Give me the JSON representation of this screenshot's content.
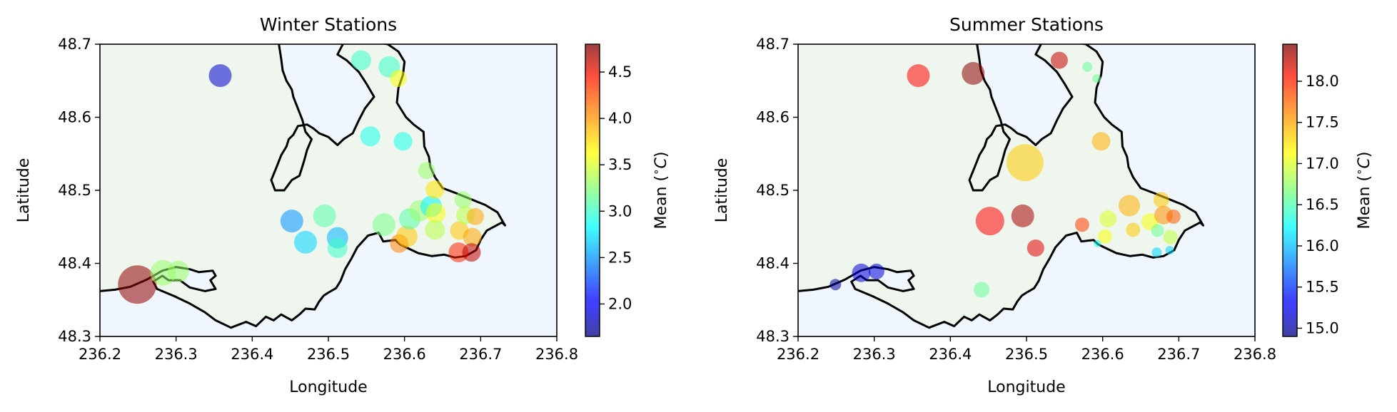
{
  "chart_data": [
    {
      "type": "scatter",
      "title": "Winter Stations",
      "xlabel": "Longitude",
      "ylabel": "Latitude",
      "xlim": [
        236.2,
        236.8
      ],
      "ylim": [
        48.3,
        48.7
      ],
      "xticks": [
        "236.2",
        "236.3",
        "236.4",
        "236.5",
        "236.6",
        "236.7",
        "236.8"
      ],
      "yticks": [
        "48.3",
        "48.4",
        "48.5",
        "48.6",
        "48.7"
      ],
      "colorbar": {
        "label": "Mean ($^\\circ$C)",
        "min": 1.65,
        "max": 4.8,
        "ticks": [
          "2.0",
          "2.5",
          "3.0",
          "3.5",
          "4.0",
          "4.5"
        ],
        "tick_values": [
          2.0,
          2.5,
          3.0,
          3.5,
          4.0,
          4.5
        ]
      },
      "points": [
        {
          "x": 236.358,
          "y": 48.657,
          "value": 1.9,
          "size": 1.6
        },
        {
          "x": 236.249,
          "y": 48.371,
          "value": 4.75,
          "size": 2.7
        },
        {
          "x": 236.283,
          "y": 48.387,
          "value": 3.3,
          "size": 1.8
        },
        {
          "x": 236.303,
          "y": 48.389,
          "value": 3.3,
          "size": 1.5
        },
        {
          "x": 236.452,
          "y": 48.458,
          "value": 2.5,
          "size": 1.6
        },
        {
          "x": 236.47,
          "y": 48.429,
          "value": 2.7,
          "size": 1.6
        },
        {
          "x": 236.495,
          "y": 48.465,
          "value": 3.1,
          "size": 1.6
        },
        {
          "x": 236.512,
          "y": 48.435,
          "value": 2.6,
          "size": 1.5
        },
        {
          "x": 236.512,
          "y": 48.421,
          "value": 3.0,
          "size": 1.4
        },
        {
          "x": 236.543,
          "y": 48.678,
          "value": 3.0,
          "size": 1.4
        },
        {
          "x": 236.555,
          "y": 48.574,
          "value": 2.9,
          "size": 1.4
        },
        {
          "x": 236.58,
          "y": 48.669,
          "value": 3.0,
          "size": 1.5
        },
        {
          "x": 236.592,
          "y": 48.653,
          "value": 3.6,
          "size": 1.2
        },
        {
          "x": 236.598,
          "y": 48.567,
          "value": 2.9,
          "size": 1.3
        },
        {
          "x": 236.573,
          "y": 48.453,
          "value": 3.2,
          "size": 1.6
        },
        {
          "x": 236.593,
          "y": 48.427,
          "value": 4.0,
          "size": 1.3
        },
        {
          "x": 236.603,
          "y": 48.437,
          "value": 3.8,
          "size": 1.5
        },
        {
          "x": 236.607,
          "y": 48.461,
          "value": 3.1,
          "size": 1.5
        },
        {
          "x": 236.62,
          "y": 48.472,
          "value": 3.3,
          "size": 1.5
        },
        {
          "x": 236.629,
          "y": 48.527,
          "value": 3.3,
          "size": 1.2
        },
        {
          "x": 236.635,
          "y": 48.478,
          "value": 2.8,
          "size": 1.5
        },
        {
          "x": 236.64,
          "y": 48.501,
          "value": 3.7,
          "size": 1.3
        },
        {
          "x": 236.641,
          "y": 48.469,
          "value": 3.6,
          "size": 1.4
        },
        {
          "x": 236.64,
          "y": 48.446,
          "value": 3.4,
          "size": 1.4
        },
        {
          "x": 236.672,
          "y": 48.445,
          "value": 3.8,
          "size": 1.3
        },
        {
          "x": 236.677,
          "y": 48.487,
          "value": 3.3,
          "size": 1.2
        },
        {
          "x": 236.68,
          "y": 48.466,
          "value": 3.4,
          "size": 1.3
        },
        {
          "x": 236.689,
          "y": 48.436,
          "value": 3.9,
          "size": 1.3
        },
        {
          "x": 236.693,
          "y": 48.464,
          "value": 3.9,
          "size": 1.2
        },
        {
          "x": 236.671,
          "y": 48.415,
          "value": 4.3,
          "size": 1.4
        },
        {
          "x": 236.688,
          "y": 48.415,
          "value": 4.6,
          "size": 1.3
        }
      ]
    },
    {
      "type": "scatter",
      "title": "Summer Stations",
      "xlabel": "Longitude",
      "ylabel": "Latitude",
      "xlim": [
        236.2,
        236.8
      ],
      "ylim": [
        48.3,
        48.7
      ],
      "xticks": [
        "236.2",
        "236.3",
        "236.4",
        "236.5",
        "236.6",
        "236.7",
        "236.8"
      ],
      "yticks": [
        "48.3",
        "48.4",
        "48.5",
        "48.6",
        "48.7"
      ],
      "colorbar": {
        "label": "Mean ($^\\circ$C)",
        "min": 14.9,
        "max": 18.45,
        "ticks": [
          "15.0",
          "15.5",
          "16.0",
          "16.5",
          "17.0",
          "17.5",
          "18.0"
        ],
        "tick_values": [
          15.0,
          15.5,
          16.0,
          16.5,
          17.0,
          17.5,
          18.0
        ]
      },
      "points": [
        {
          "x": 236.358,
          "y": 48.657,
          "value": 18.0,
          "size": 1.6
        },
        {
          "x": 236.43,
          "y": 48.66,
          "value": 18.4,
          "size": 1.6
        },
        {
          "x": 236.543,
          "y": 48.678,
          "value": 18.2,
          "size": 1.2
        },
        {
          "x": 236.58,
          "y": 48.669,
          "value": 16.6,
          "size": 0.7
        },
        {
          "x": 236.592,
          "y": 48.653,
          "value": 16.6,
          "size": 0.6
        },
        {
          "x": 236.598,
          "y": 48.567,
          "value": 17.4,
          "size": 1.3
        },
        {
          "x": 236.498,
          "y": 48.538,
          "value": 17.3,
          "size": 2.6
        },
        {
          "x": 236.452,
          "y": 48.458,
          "value": 18.0,
          "size": 2.0
        },
        {
          "x": 236.495,
          "y": 48.465,
          "value": 18.3,
          "size": 1.6
        },
        {
          "x": 236.512,
          "y": 48.421,
          "value": 18.1,
          "size": 1.2
        },
        {
          "x": 236.249,
          "y": 48.371,
          "value": 15.0,
          "size": 0.8
        },
        {
          "x": 236.283,
          "y": 48.387,
          "value": 15.2,
          "size": 1.3
        },
        {
          "x": 236.303,
          "y": 48.389,
          "value": 15.2,
          "size": 1.1
        },
        {
          "x": 236.441,
          "y": 48.364,
          "value": 16.6,
          "size": 1.1
        },
        {
          "x": 236.573,
          "y": 48.453,
          "value": 17.8,
          "size": 1.0
        },
        {
          "x": 236.593,
          "y": 48.427,
          "value": 16.3,
          "size": 0.5
        },
        {
          "x": 236.603,
          "y": 48.437,
          "value": 17.1,
          "size": 1.0
        },
        {
          "x": 236.607,
          "y": 48.461,
          "value": 17.0,
          "size": 1.2
        },
        {
          "x": 236.635,
          "y": 48.479,
          "value": 17.4,
          "size": 1.5
        },
        {
          "x": 236.64,
          "y": 48.446,
          "value": 17.3,
          "size": 1.0
        },
        {
          "x": 236.662,
          "y": 48.457,
          "value": 17.1,
          "size": 1.2
        },
        {
          "x": 236.677,
          "y": 48.487,
          "value": 17.3,
          "size": 1.1
        },
        {
          "x": 236.68,
          "y": 48.466,
          "value": 17.5,
          "size": 1.3
        },
        {
          "x": 236.693,
          "y": 48.464,
          "value": 17.7,
          "size": 1.0
        },
        {
          "x": 236.672,
          "y": 48.445,
          "value": 16.6,
          "size": 0.9
        },
        {
          "x": 236.689,
          "y": 48.436,
          "value": 16.9,
          "size": 1.0
        },
        {
          "x": 236.671,
          "y": 48.415,
          "value": 16.1,
          "size": 0.7
        },
        {
          "x": 236.688,
          "y": 48.418,
          "value": 16.1,
          "size": 0.6
        }
      ]
    }
  ],
  "colors": {
    "land": "#eef6ee",
    "water": "#f0f6fd",
    "coastline": "#000000",
    "axes": "#000000"
  },
  "coastline": [
    [
      236.2,
      48.362
    ],
    [
      236.22,
      48.364
    ],
    [
      236.24,
      48.368
    ],
    [
      236.262,
      48.378
    ],
    [
      236.282,
      48.39
    ],
    [
      236.3,
      48.395
    ],
    [
      236.318,
      48.392
    ],
    [
      236.33,
      48.388
    ],
    [
      236.348,
      48.39
    ],
    [
      236.352,
      48.383
    ],
    [
      236.345,
      48.377
    ],
    [
      236.352,
      48.365
    ],
    [
      236.338,
      48.362
    ],
    [
      236.318,
      48.367
    ],
    [
      236.305,
      48.377
    ],
    [
      236.29,
      48.377
    ],
    [
      236.282,
      48.383
    ],
    [
      236.27,
      48.375
    ],
    [
      236.275,
      48.365
    ],
    [
      236.298,
      48.355
    ],
    [
      236.318,
      48.345
    ],
    [
      236.338,
      48.333
    ],
    [
      236.352,
      48.322
    ],
    [
      236.372,
      48.312
    ],
    [
      236.392,
      48.32
    ],
    [
      236.405,
      48.314
    ],
    [
      236.418,
      48.327
    ],
    [
      236.428,
      48.322
    ],
    [
      236.438,
      48.33
    ],
    [
      236.452,
      48.322
    ],
    [
      236.462,
      48.33
    ],
    [
      236.47,
      48.338
    ],
    [
      236.482,
      48.337
    ],
    [
      236.488,
      48.348
    ],
    [
      236.494,
      48.356
    ],
    [
      236.5,
      48.36
    ],
    [
      236.51,
      48.366
    ],
    [
      236.516,
      48.376
    ],
    [
      236.522,
      48.392
    ],
    [
      236.53,
      48.406
    ],
    [
      236.538,
      48.422
    ],
    [
      236.552,
      48.438
    ],
    [
      236.566,
      48.442
    ],
    [
      236.572,
      48.43
    ],
    [
      236.588,
      48.432
    ],
    [
      236.594,
      48.426
    ],
    [
      236.604,
      48.421
    ],
    [
      236.618,
      48.414
    ],
    [
      236.636,
      48.41
    ],
    [
      236.652,
      48.412
    ],
    [
      236.666,
      48.408
    ],
    [
      236.68,
      48.41
    ],
    [
      236.694,
      48.418
    ],
    [
      236.7,
      48.432
    ],
    [
      236.708,
      48.445
    ],
    [
      236.728,
      48.456
    ],
    [
      236.732,
      48.452
    ],
    [
      236.722,
      48.47
    ],
    [
      236.706,
      48.48
    ],
    [
      236.682,
      48.49
    ],
    [
      236.668,
      48.496
    ],
    [
      236.65,
      48.503
    ],
    [
      236.64,
      48.518
    ],
    [
      236.634,
      48.532
    ],
    [
      236.632,
      48.546
    ],
    [
      236.626,
      48.56
    ],
    [
      236.625,
      48.58
    ],
    [
      236.612,
      48.59
    ],
    [
      236.602,
      48.6
    ],
    [
      236.59,
      48.62
    ],
    [
      236.592,
      48.64
    ],
    [
      236.598,
      48.658
    ],
    [
      236.6,
      48.676
    ],
    [
      236.592,
      48.69
    ],
    [
      236.578,
      48.7
    ],
    [
      236.56,
      48.703
    ],
    [
      236.546,
      48.705
    ],
    [
      236.532,
      48.704
    ],
    [
      236.52,
      48.702
    ],
    [
      236.512,
      48.686
    ],
    [
      236.524,
      48.678
    ],
    [
      236.54,
      48.662
    ],
    [
      236.55,
      48.646
    ],
    [
      236.56,
      48.628
    ],
    [
      236.548,
      48.612
    ],
    [
      236.54,
      48.596
    ],
    [
      236.532,
      48.578
    ],
    [
      236.52,
      48.57
    ],
    [
      236.512,
      48.562
    ],
    [
      236.5,
      48.573
    ],
    [
      236.488,
      48.578
    ],
    [
      236.48,
      48.585
    ],
    [
      236.472,
      48.59
    ],
    [
      236.46,
      48.588
    ],
    [
      236.454,
      48.576
    ],
    [
      236.448,
      48.57
    ],
    [
      236.445,
      48.56
    ],
    [
      236.438,
      48.548
    ],
    [
      236.432,
      48.532
    ],
    [
      236.425,
      48.514
    ],
    [
      236.43,
      48.5
    ],
    [
      236.442,
      48.5
    ],
    [
      236.452,
      48.514
    ],
    [
      236.462,
      48.52
    ],
    [
      236.468,
      48.54
    ],
    [
      236.472,
      48.555
    ],
    [
      236.478,
      48.57
    ],
    [
      236.47,
      48.58
    ],
    [
      236.466,
      48.596
    ],
    [
      236.46,
      48.612
    ],
    [
      236.454,
      48.628
    ],
    [
      236.452,
      48.638
    ],
    [
      236.445,
      48.65
    ],
    [
      236.44,
      48.664
    ],
    [
      236.438,
      48.68
    ],
    [
      236.435,
      48.7
    ]
  ]
}
